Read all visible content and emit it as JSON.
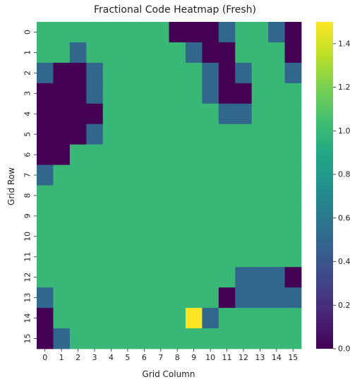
{
  "chart_data": {
    "type": "heatmap",
    "title": "Fractional Code Heatmap (Fresh)",
    "xlabel": "Grid Column",
    "ylabel": "Grid Row",
    "x_ticks": [
      "0",
      "1",
      "2",
      "3",
      "4",
      "5",
      "6",
      "7",
      "8",
      "9",
      "10",
      "11",
      "12",
      "13",
      "14",
      "15"
    ],
    "y_ticks": [
      "0",
      "1",
      "2",
      "3",
      "4",
      "5",
      "6",
      "7",
      "8",
      "9",
      "10",
      "11",
      "12",
      "13",
      "14",
      "15"
    ],
    "colormap": "viridis",
    "vmin": 0.0,
    "vmax": 1.5,
    "colorbar_ticks": [
      "0.0",
      "0.2",
      "0.4",
      "0.6",
      "0.8",
      "1.0",
      "1.2",
      "1.4"
    ],
    "values": [
      [
        1,
        1,
        1,
        1,
        1,
        1,
        1,
        1,
        0,
        0,
        0,
        0.5,
        1,
        1,
        0.5,
        0
      ],
      [
        1,
        1,
        0.5,
        1,
        1,
        1,
        1,
        1,
        1,
        0.5,
        0,
        0,
        1,
        1,
        1,
        0
      ],
      [
        0.5,
        0,
        0,
        0.5,
        1,
        1,
        1,
        1,
        1,
        1,
        0.5,
        0,
        0.5,
        1,
        1,
        0.5
      ],
      [
        0,
        0,
        0,
        0.5,
        1,
        1,
        1,
        1,
        1,
        1,
        0.5,
        0,
        0,
        1,
        1,
        1
      ],
      [
        0,
        0,
        0,
        0,
        1,
        1,
        1,
        1,
        1,
        1,
        1,
        0.5,
        0.5,
        1,
        1,
        1
      ],
      [
        0,
        0,
        0,
        0.5,
        1,
        1,
        1,
        1,
        1,
        1,
        1,
        1,
        1,
        1,
        1,
        1
      ],
      [
        0,
        0,
        1,
        1,
        1,
        1,
        1,
        1,
        1,
        1,
        1,
        1,
        1,
        1,
        1,
        1
      ],
      [
        0.5,
        1,
        1,
        1,
        1,
        1,
        1,
        1,
        1,
        1,
        1,
        1,
        1,
        1,
        1,
        1
      ],
      [
        1,
        1,
        1,
        1,
        1,
        1,
        1,
        1,
        1,
        1,
        1,
        1,
        1,
        1,
        1,
        1
      ],
      [
        1,
        1,
        1,
        1,
        1,
        1,
        1,
        1,
        1,
        1,
        1,
        1,
        1,
        1,
        1,
        1
      ],
      [
        1,
        1,
        1,
        1,
        1,
        1,
        1,
        1,
        1,
        1,
        1,
        1,
        1,
        1,
        1,
        1
      ],
      [
        1,
        1,
        1,
        1,
        1,
        1,
        1,
        1,
        1,
        1,
        1,
        1,
        1,
        1,
        1,
        1
      ],
      [
        1,
        1,
        1,
        1,
        1,
        1,
        1,
        1,
        1,
        1,
        1,
        1,
        0.5,
        0.5,
        0.5,
        0
      ],
      [
        0.5,
        1,
        1,
        1,
        1,
        1,
        1,
        1,
        1,
        1,
        1,
        0,
        0.5,
        0.5,
        0.5,
        0.5
      ],
      [
        0,
        1,
        1,
        1,
        1,
        1,
        1,
        1,
        1,
        1.5,
        0.5,
        1,
        1,
        1,
        1,
        1
      ],
      [
        0,
        0.5,
        1,
        1,
        1,
        1,
        1,
        1,
        1,
        1,
        1,
        1,
        1,
        1,
        1,
        1
      ]
    ]
  }
}
